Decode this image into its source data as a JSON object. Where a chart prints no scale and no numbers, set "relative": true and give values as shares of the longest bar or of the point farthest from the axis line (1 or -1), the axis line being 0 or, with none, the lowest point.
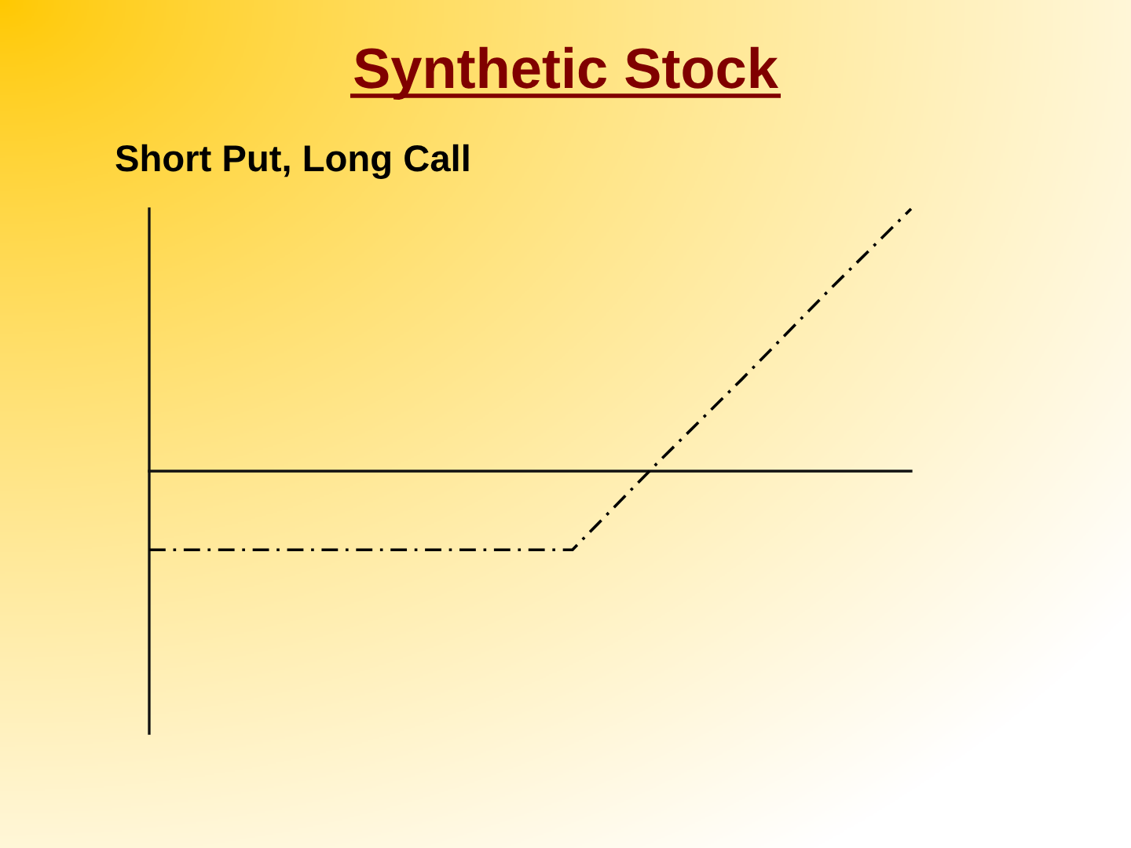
{
  "chart_data": {
    "type": "line",
    "title": "Synthetic Stock",
    "subtitle": "Short Put, Long Call",
    "categories": [
      null,
      null,
      null,
      null,
      null,
      null,
      null,
      null,
      null,
      null
    ],
    "values": [
      -0.3,
      -0.3,
      -0.3,
      -0.3,
      -0.3,
      -0.3,
      0.03,
      0.35,
      0.68,
      1
    ],
    "color": "#000000",
    "relative": true,
    "line_style": "dashed"
  }
}
